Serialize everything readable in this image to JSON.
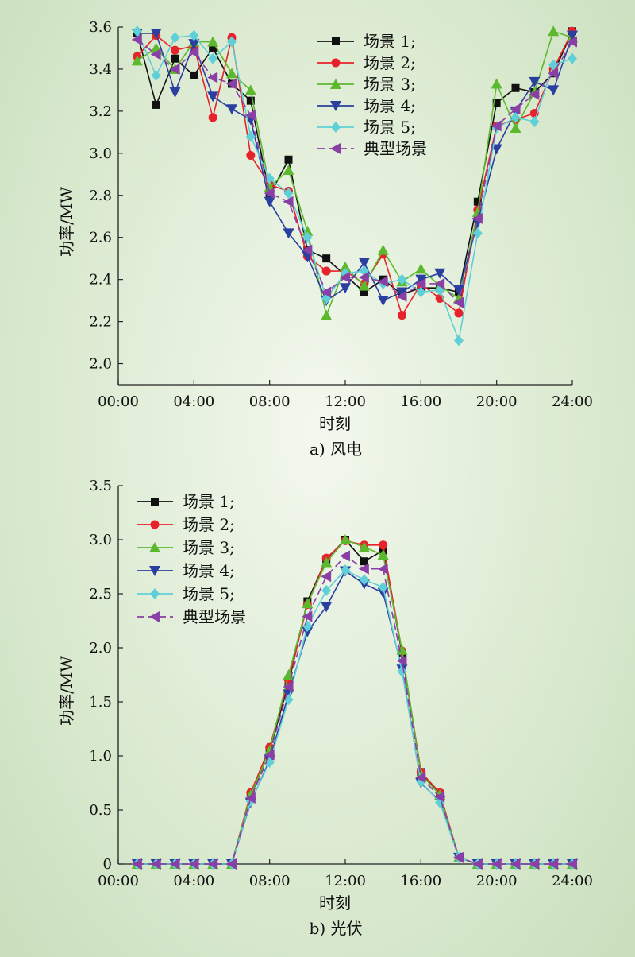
{
  "charts": [
    {
      "caption": "a) 风电",
      "chart_data": {
        "type": "line",
        "xlabel": "时刻",
        "ylabel": "功率/MW",
        "xlim": [
          0,
          24
        ],
        "ylim": [
          1.9,
          3.6
        ],
        "x_ticks": [
          "00:00",
          "04:00",
          "08:00",
          "12:00",
          "16:00",
          "20:00",
          "24:00"
        ],
        "y_ticks": [
          "2.0",
          "2.2",
          "2.4",
          "2.6",
          "2.8",
          "3.0",
          "3.2",
          "3.4",
          "3.6"
        ],
        "legend_position": "top-right",
        "grid": false,
        "x": [
          1,
          2,
          3,
          4,
          5,
          6,
          7,
          8,
          9,
          10,
          11,
          12,
          13,
          14,
          15,
          16,
          17,
          18,
          19,
          20,
          21,
          22,
          23,
          24
        ],
        "series": [
          {
            "name": "场景 1;",
            "color": "#111111",
            "marker": "square",
            "dash": false,
            "values": [
              3.57,
              3.23,
              3.45,
              3.37,
              3.5,
              3.33,
              3.25,
              2.8,
              2.97,
              2.54,
              2.5,
              2.42,
              2.34,
              2.4,
              2.33,
              2.36,
              2.36,
              2.34,
              2.77,
              3.24,
              3.31,
              3.29,
              3.38,
              3.58
            ]
          },
          {
            "name": "场景 2;",
            "color": "#e8222a",
            "marker": "circle",
            "dash": false,
            "values": [
              3.46,
              3.56,
              3.49,
              3.51,
              3.17,
              3.55,
              2.99,
              2.85,
              2.82,
              2.51,
              2.44,
              2.44,
              2.38,
              2.52,
              2.23,
              2.38,
              2.31,
              2.24,
              2.73,
              3.13,
              3.16,
              3.19,
              3.4,
              3.58
            ]
          },
          {
            "name": "场景 3;",
            "color": "#5cb82c",
            "marker": "triangle-up",
            "dash": false,
            "values": [
              3.44,
              3.5,
              3.4,
              3.53,
              3.53,
              3.38,
              3.3,
              2.84,
              2.92,
              2.63,
              2.23,
              2.46,
              2.37,
              2.54,
              2.39,
              2.45,
              2.37,
              2.31,
              2.72,
              3.33,
              3.12,
              3.29,
              3.58,
              3.55
            ]
          },
          {
            "name": "场景 4;",
            "color": "#2a3fa0",
            "marker": "triangle-down",
            "dash": false,
            "values": [
              3.57,
              3.57,
              3.29,
              3.52,
              3.27,
              3.21,
              3.16,
              2.77,
              2.62,
              2.51,
              2.3,
              2.36,
              2.48,
              2.3,
              2.34,
              2.4,
              2.43,
              2.35,
              2.67,
              3.02,
              3.2,
              3.34,
              3.3,
              3.56
            ]
          },
          {
            "name": "场景 5;",
            "color": "#5fd0d8",
            "marker": "diamond",
            "dash": false,
            "values": [
              3.58,
              3.37,
              3.55,
              3.56,
              3.45,
              3.53,
              3.08,
              2.88,
              2.81,
              2.6,
              2.31,
              2.43,
              2.44,
              2.38,
              2.4,
              2.34,
              2.35,
              2.11,
              2.62,
              3.12,
              3.17,
              3.15,
              3.42,
              3.45
            ]
          },
          {
            "name": "典型场景",
            "color": "#8a3fa6",
            "marker": "triangle-left",
            "dash": true,
            "values": [
              3.54,
              3.47,
              3.4,
              3.48,
              3.36,
              3.33,
              3.18,
              2.81,
              2.77,
              2.54,
              2.34,
              2.41,
              2.41,
              2.39,
              2.32,
              2.38,
              2.38,
              2.29,
              2.69,
              3.13,
              3.21,
              3.28,
              3.38,
              3.53
            ]
          }
        ]
      }
    },
    {
      "caption": "b) 光伏",
      "chart_data": {
        "type": "line",
        "xlabel": "时刻",
        "ylabel": "功率/MW",
        "xlim": [
          0,
          24
        ],
        "ylim": [
          0,
          3.5
        ],
        "x_ticks": [
          "00:00",
          "04:00",
          "08:00",
          "12:00",
          "16:00",
          "20:00",
          "24:00"
        ],
        "y_ticks": [
          "0",
          "0.5",
          "1.0",
          "1.5",
          "2.0",
          "2.5",
          "3.0",
          "3.5"
        ],
        "legend_position": "top-left",
        "grid": false,
        "x": [
          1,
          2,
          3,
          4,
          5,
          6,
          7,
          8,
          9,
          10,
          11,
          12,
          13,
          14,
          15,
          16,
          17,
          18,
          19,
          20,
          21,
          22,
          23,
          24
        ],
        "series": [
          {
            "name": "场景 1;",
            "color": "#111111",
            "marker": "square",
            "dash": false,
            "values": [
              0,
              0,
              0,
              0,
              0,
              0,
              0.63,
              1.05,
              1.67,
              2.43,
              2.82,
              3.0,
              2.8,
              2.9,
              1.95,
              0.85,
              0.65,
              0.06,
              0,
              0,
              0,
              0,
              0,
              0
            ]
          },
          {
            "name": "场景 2;",
            "color": "#e8222a",
            "marker": "circle",
            "dash": false,
            "values": [
              0,
              0,
              0,
              0,
              0,
              0,
              0.66,
              1.08,
              1.7,
              2.4,
              2.83,
              2.99,
              2.95,
              2.95,
              1.97,
              0.85,
              0.66,
              0.06,
              0,
              0,
              0,
              0,
              0,
              0
            ]
          },
          {
            "name": "场景 3;",
            "color": "#5cb82c",
            "marker": "triangle-up",
            "dash": false,
            "values": [
              0,
              0,
              0,
              0,
              0,
              0,
              0.64,
              1.05,
              1.75,
              2.41,
              2.79,
              3.0,
              2.93,
              2.86,
              1.98,
              0.83,
              0.64,
              0.06,
              0,
              0,
              0,
              0,
              0,
              0
            ]
          },
          {
            "name": "场景 4;",
            "color": "#2a3fa0",
            "marker": "triangle-down",
            "dash": false,
            "values": [
              0,
              0,
              0,
              0,
              0,
              0,
              0.57,
              0.96,
              1.57,
              2.15,
              2.38,
              2.71,
              2.59,
              2.51,
              1.8,
              0.75,
              0.58,
              0.06,
              0,
              0,
              0,
              0,
              0,
              0
            ]
          },
          {
            "name": "场景 5;",
            "color": "#5fd0d8",
            "marker": "diamond",
            "dash": false,
            "values": [
              0,
              0,
              0,
              0,
              0,
              0,
              0.58,
              0.94,
              1.52,
              2.2,
              2.53,
              2.72,
              2.63,
              2.56,
              1.78,
              0.76,
              0.57,
              0.06,
              0,
              0,
              0,
              0,
              0,
              0
            ]
          },
          {
            "name": "典型场景",
            "color": "#8a3fa6",
            "marker": "triangle-left",
            "dash": true,
            "values": [
              0,
              0,
              0,
              0,
              0,
              0,
              0.61,
              1.01,
              1.64,
              2.29,
              2.66,
              2.85,
              2.73,
              2.73,
              1.88,
              0.8,
              0.62,
              0.06,
              0,
              0,
              0,
              0,
              0,
              0
            ]
          }
        ]
      }
    }
  ]
}
